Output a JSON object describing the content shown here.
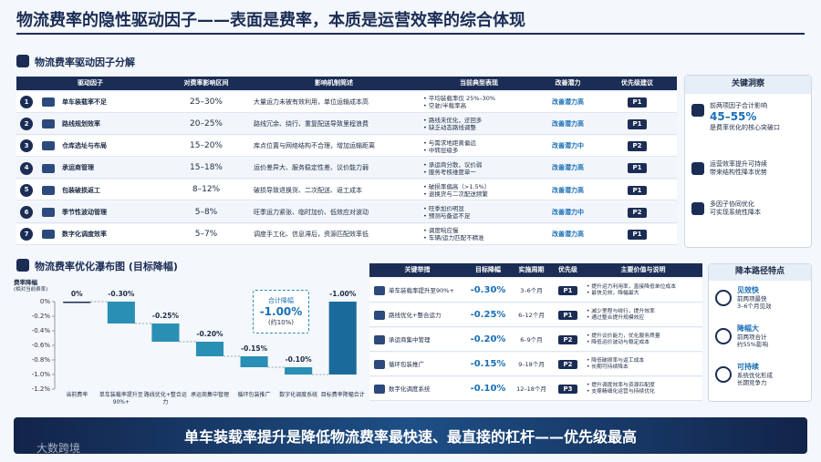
{
  "title": "物流费率的隐性驱动因子——表面是费率，本质是运营效率的综合体现",
  "factors": {
    "heading": "物流费率驱动因子分解",
    "columns": [
      "驱动因子",
      "对费率影响区间",
      "影响机制简述",
      "当前典型表现",
      "改善潜力",
      "优先级建议"
    ],
    "rows": [
      {
        "no": "1",
        "name": "单车装载率不足",
        "range": "25–30%",
        "mechanism": "大量运力未被有效利用，单位运输成本高",
        "status": [
          "• 平均装载率仅 25%–30%",
          "• 空驶/半载率高"
        ],
        "potential": "改善潜力高",
        "priority": "P1"
      },
      {
        "no": "2",
        "name": "路线规划效率",
        "range": "20–25%",
        "mechanism": "路线冗余、绕行、重复配送导致里程浪费",
        "status": [
          "• 路线未优化，迂回多",
          "• 缺乏动态路线调整"
        ],
        "potential": "改善潜力高",
        "priority": "P1"
      },
      {
        "no": "3",
        "name": "仓库选址与布局",
        "range": "15–20%",
        "mechanism": "库点位置与网络结构不合理，增加运输距离",
        "status": [
          "• 与需求地距离偏远",
          "• 中转层级多"
        ],
        "potential": "改善潜力中",
        "priority": "P2"
      },
      {
        "no": "4",
        "name": "承运商管理",
        "range": "15–18%",
        "mechanism": "运价差异大、服务稳定性差、议价能力弱",
        "status": [
          "• 承运商分散，议价弱",
          "• 服务考核维度单一"
        ],
        "potential": "改善潜力高",
        "priority": "P1"
      },
      {
        "no": "5",
        "name": "包装破损返工",
        "range": "8–12%",
        "mechanism": "破损导致退换货、二次配送、返工成本",
        "status": [
          "• 破损率偏高（>1.5%）",
          "• 退换货与二次配送频繁"
        ],
        "potential": "改善潜力高",
        "priority": "P1"
      },
      {
        "no": "6",
        "name": "季节性波动管理",
        "range": "5–8%",
        "mechanism": "旺季运力紧张、临时加价、低效应对波动",
        "status": [
          "• 旺季加价明显",
          "• 预测与备运不足"
        ],
        "potential": "改善潜力中",
        "priority": "P2"
      },
      {
        "no": "7",
        "name": "数字化调度效率",
        "range": "5–7%",
        "mechanism": "调度手工化、信息滞后，资源匹配效率低",
        "status": [
          "• 调度响应慢",
          "• 车辆/运力匹配不精准"
        ],
        "potential": "改善潜力高",
        "priority": "P1"
      }
    ]
  },
  "insights": {
    "heading": "关键洞察",
    "items": [
      {
        "lines": [
          "前两项因子合计影响",
          "45–55%",
          "是费率优化的核心突破口"
        ]
      },
      {
        "lines": [
          "运营效率提升可持续",
          "带来结构性降本优势"
        ]
      },
      {
        "lines": [
          "多因子协同优化",
          "可实现系统性降本"
        ]
      }
    ]
  },
  "chart_data": {
    "type": "waterfall",
    "title": "物流费率优化瀑布图 (目标降幅)",
    "y_label": "费率降幅",
    "y_sublabel": "(相对当前费率)",
    "categories": [
      "当前费率",
      "单车装载率提升至90%+",
      "路线优化+整合运力",
      "承运商集中管理",
      "循环包装推广",
      "数字化调度系统",
      "目标费率降幅合计"
    ],
    "values": [
      0,
      -0.3,
      -0.25,
      -0.2,
      -0.15,
      -0.1,
      -1.0
    ],
    "value_labels": [
      "0%",
      "-0.30%",
      "-0.25%",
      "-0.20%",
      "-0.15%",
      "-0.10%",
      "-1.00%"
    ],
    "colors": {
      "start": "#1b2d55",
      "step": "#2a8fb5",
      "total": "#1a6b9c"
    },
    "ylim": [
      -1.2,
      0
    ],
    "yticks": [
      {
        "value": 0,
        "label": "0%"
      },
      {
        "value": -0.2,
        "label": "-0.2%"
      },
      {
        "value": -0.4,
        "label": "-0.4%"
      },
      {
        "value": -0.6,
        "label": "-0.6%"
      },
      {
        "value": -0.8,
        "label": "-0.8%"
      },
      {
        "value": -1.0,
        "label": "-1.0%"
      },
      {
        "value": -1.2,
        "label": "-1.2%"
      }
    ],
    "annotation": {
      "title": "合计降幅",
      "value": "-1.00%",
      "note": "(约10%)"
    }
  },
  "measures": {
    "columns": [
      "关键举措",
      "目标降幅",
      "实施周期",
      "优先级",
      "主要价值与说明"
    ],
    "rows": [
      {
        "name": "单车装载率提升至90%+",
        "target": "-0.30%",
        "period": "3–6个月",
        "priority": "P1",
        "notes": [
          "• 提升运力利用率，直接降低单位成本",
          "• 最快见效，降幅最大"
        ]
      },
      {
        "name": "路线优化+整合运力",
        "target": "-0.25%",
        "period": "6–12个月",
        "priority": "P1",
        "notes": [
          "• 减少里程与绕行，提升效率",
          "• 通过整合提升规模效应"
        ]
      },
      {
        "name": "承运商集中管理",
        "target": "-0.20%",
        "period": "6–9个月",
        "priority": "P2",
        "notes": [
          "• 提升议价能力，优化服务质量",
          "• 降低运价波动与稳定成本"
        ]
      },
      {
        "name": "循环包装推广",
        "target": "-0.15%",
        "period": "9–18个月",
        "priority": "P2",
        "notes": [
          "• 降低破损率与返工成本",
          "• 长期可持续降本"
        ]
      },
      {
        "name": "数字化调度系统",
        "target": "-0.10%",
        "period": "12–18个月",
        "priority": "P3",
        "notes": [
          "• 提升调度效率与资源匹配度",
          "• 支撑精细化运营与持续优化"
        ]
      }
    ]
  },
  "path": {
    "heading": "降本路径特点",
    "items": [
      {
        "title": "见效快",
        "lines": [
          "前两项最快",
          "3–6个月见效"
        ]
      },
      {
        "title": "降幅大",
        "lines": [
          "前两项合计",
          "约55%影响"
        ]
      },
      {
        "title": "可持续",
        "lines": [
          "系统优化形成",
          "长期竞争力"
        ]
      }
    ]
  },
  "banner": "单车装载率提升是降低物流费率最快速、最直接的杠杆——优先级最高",
  "watermark": "大数跨境"
}
